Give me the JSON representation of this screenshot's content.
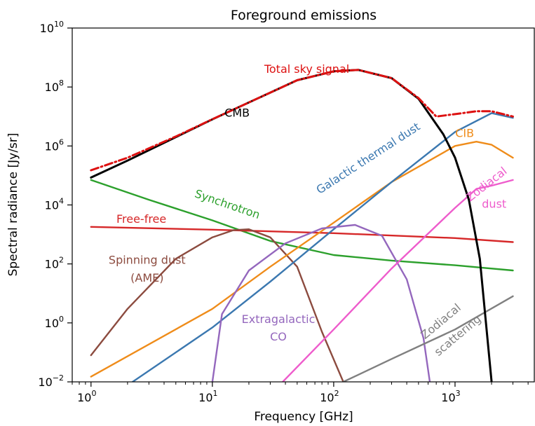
{
  "chart_data": {
    "type": "line",
    "title": "Foreground emissions",
    "xlabel": "Frequency [GHz]",
    "ylabel": "Spectral radiance [Jy/sr]",
    "xscale": "log",
    "yscale": "log",
    "xlim": [
      0.7,
      4500
    ],
    "ylim": [
      0.01,
      10000000000
    ],
    "grid": false,
    "legend": "none",
    "x_ticks": [
      {
        "value": 1,
        "base": "10",
        "exp": "0"
      },
      {
        "value": 10,
        "base": "10",
        "exp": "1"
      },
      {
        "value": 100,
        "base": "10",
        "exp": "2"
      },
      {
        "value": 1000,
        "base": "10",
        "exp": "3"
      }
    ],
    "y_ticks": [
      {
        "value": 0.01,
        "base": "10",
        "exp": "−2"
      },
      {
        "value": 1,
        "base": "10",
        "exp": "0"
      },
      {
        "value": 100,
        "base": "10",
        "exp": "2"
      },
      {
        "value": 10000,
        "base": "10",
        "exp": "4"
      },
      {
        "value": 1000000,
        "base": "10",
        "exp": "6"
      },
      {
        "value": 100000000,
        "base": "10",
        "exp": "8"
      },
      {
        "value": 10000000000,
        "base": "10",
        "exp": "10"
      }
    ],
    "series": [
      {
        "id": "cmb",
        "name": "CMB",
        "color": "#000000",
        "dash": "solid",
        "x": [
          1,
          2,
          5,
          10,
          20,
          50,
          100,
          160,
          300,
          500,
          800,
          1000,
          1300,
          1600,
          2000
        ],
        "y": [
          85000,
          320000,
          2000000,
          8000000,
          30000000,
          170000000,
          340000000,
          380000000,
          200000000,
          40000000,
          2500000,
          400000,
          15000,
          150,
          0.01
        ]
      },
      {
        "id": "total",
        "name": "Total sky signal",
        "color": "#dd1111",
        "dash": "dashdot",
        "x": [
          1,
          2,
          5,
          10,
          20,
          50,
          100,
          160,
          300,
          500,
          700,
          1000,
          1500,
          2000,
          3000
        ],
        "y": [
          150000,
          400000,
          2100000,
          8100000,
          30000000,
          170000000,
          340000000,
          380000000,
          200000000,
          42000000,
          10000000,
          12000000,
          15000000,
          15000000,
          10000000
        ]
      },
      {
        "id": "thermal-dust",
        "name": "Galactic thermal dust",
        "color": "#3b78b0",
        "dash": "solid",
        "x": [
          2.2,
          10,
          30,
          100,
          300,
          1000,
          2000,
          3000
        ],
        "y": [
          0.01,
          0.7,
          25,
          1500,
          60000,
          3000000,
          13000000,
          9000000
        ]
      },
      {
        "id": "cib",
        "name": "CIB",
        "color": "#ef8c1a",
        "dash": "solid",
        "x": [
          1,
          10,
          30,
          100,
          300,
          1000,
          1500,
          2000,
          3000
        ],
        "y": [
          0.015,
          3,
          80,
          2500,
          60000,
          1000000,
          1400000,
          1100000,
          400000
        ]
      },
      {
        "id": "synchrotron",
        "name": "Synchrotron",
        "color": "#2ca02c",
        "dash": "solid",
        "x": [
          1,
          3,
          10,
          30,
          100,
          300,
          1000,
          3000
        ],
        "y": [
          70000,
          15000,
          3000,
          600,
          200,
          130,
          90,
          60
        ]
      },
      {
        "id": "free-free",
        "name": "Free-free",
        "color": "#d62728",
        "dash": "solid",
        "x": [
          1,
          10,
          100,
          1000,
          3000
        ],
        "y": [
          1800,
          1450,
          1100,
          750,
          550
        ]
      },
      {
        "id": "spinning-dust",
        "name": "Spinning dust (AME)",
        "color": "#8c4b3f",
        "dash": "solid",
        "x": [
          1,
          2,
          5,
          10,
          15,
          20,
          30,
          50,
          80,
          120
        ],
        "y": [
          0.08,
          3,
          150,
          800,
          1400,
          1500,
          800,
          80,
          0.5,
          0.01
        ]
      },
      {
        "id": "extragalactic-co",
        "name": "Extragalactic CO",
        "color": "#9467bd",
        "dash": "solid",
        "x": [
          10,
          12,
          20,
          40,
          80,
          150,
          250,
          400,
          550,
          620
        ],
        "y": [
          0.01,
          2,
          60,
          500,
          1600,
          2100,
          900,
          30,
          0.3,
          0.01
        ]
      },
      {
        "id": "zodiacal-dust",
        "name": "Zodiacal dust",
        "color": "#ee5ccc",
        "dash": "solid",
        "x": [
          38,
          100,
          300,
          1000,
          1500,
          2000,
          3000
        ],
        "y": [
          0.01,
          0.6,
          70,
          8000,
          35000,
          45000,
          70000
        ]
      },
      {
        "id": "zodiacal-scattering",
        "name": "Zodiacal scattering",
        "color": "#808080",
        "dash": "solid",
        "x": [
          120,
          300,
          1000,
          3000
        ],
        "y": [
          0.01,
          0.06,
          0.6,
          8
        ]
      }
    ],
    "annotations": [
      {
        "series": "total",
        "text": "Total sky signal",
        "color": "#dd1111",
        "x": 60,
        "y": 300000000,
        "rotate": 0
      },
      {
        "series": "cmb",
        "text": "CMB",
        "color": "#000000",
        "x": 16,
        "y": 10000000,
        "rotate": 0
      },
      {
        "series": "thermal-dust",
        "text": "Galactic thermal dust",
        "color": "#3b78b0",
        "x": 200,
        "y": 300000,
        "rotate": -33
      },
      {
        "series": "cib",
        "text": "CIB",
        "color": "#ef8c1a",
        "x": 1200,
        "y": 2000000,
        "rotate": 0
      },
      {
        "series": "synchrotron",
        "text": "Synchrotron",
        "color": "#2ca02c",
        "x": 13,
        "y": 8000,
        "rotate": 19
      },
      {
        "series": "free-free",
        "text": "Free-free",
        "color": "#d62728",
        "x": 2.6,
        "y": 2500,
        "rotate": 0
      },
      {
        "series": "spinning-dust",
        "text": "Spinning dust",
        "color": "#8c4b3f",
        "x": 2.9,
        "y": 100,
        "rotate": 0
      },
      {
        "series": "spinning-dust",
        "text": "(AME)",
        "color": "#8c4b3f",
        "x": 2.9,
        "y": 25,
        "rotate": 0
      },
      {
        "series": "extragalactic-co",
        "text": "Extragalactic",
        "color": "#9467bd",
        "x": 35,
        "y": 1,
        "rotate": 0
      },
      {
        "series": "extragalactic-co",
        "text": "CO",
        "color": "#9467bd",
        "x": 35,
        "y": 0.25,
        "rotate": 0
      },
      {
        "series": "zodiacal-dust",
        "text": "Zodiacal",
        "color": "#ee5ccc",
        "x": 1900,
        "y": 40000,
        "rotate": -38
      },
      {
        "series": "zodiacal-dust",
        "text": "dust",
        "color": "#ee5ccc",
        "x": 2100,
        "y": 8000,
        "rotate": 0
      },
      {
        "series": "zodiacal-scattering",
        "text": "Zodiacal",
        "color": "#808080",
        "x": 800,
        "y": 0.9,
        "rotate": -40
      },
      {
        "series": "zodiacal-scattering",
        "text": "scattering",
        "color": "#808080",
        "x": 1100,
        "y": 0.3,
        "rotate": -40
      }
    ]
  }
}
